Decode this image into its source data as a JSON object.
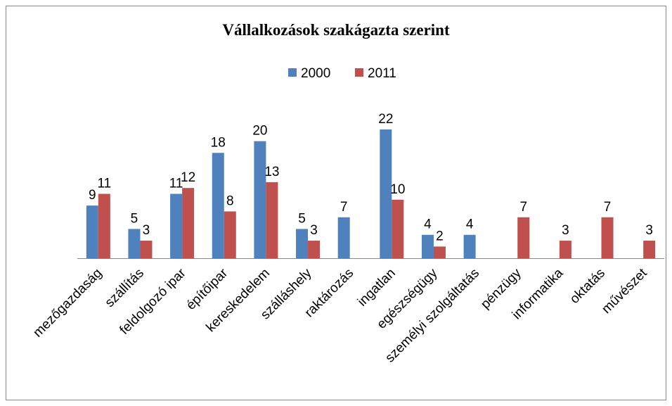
{
  "chart_data": {
    "type": "bar",
    "title": "Vállalkozások szakágazta szerint",
    "categories": [
      "mezőgazdaság",
      "szállítás",
      "feldolgozó ipar",
      "építőipar",
      "kereskedelem",
      "szálláshely",
      "raktározás",
      "ingatlan",
      "egészségügy",
      "személyi szolgáltatás",
      "pénzügy",
      "informatika",
      "oktatás",
      "művészet"
    ],
    "series": [
      {
        "name": "2000",
        "color": "#4f81bd",
        "values": [
          9,
          5,
          11,
          18,
          20,
          5,
          7,
          22,
          4,
          4,
          null,
          null,
          null,
          null
        ]
      },
      {
        "name": "2011",
        "color": "#c0504d",
        "values": [
          11,
          3,
          12,
          8,
          13,
          3,
          null,
          10,
          2,
          null,
          7,
          3,
          7,
          3
        ]
      }
    ],
    "legend": "top"
  }
}
